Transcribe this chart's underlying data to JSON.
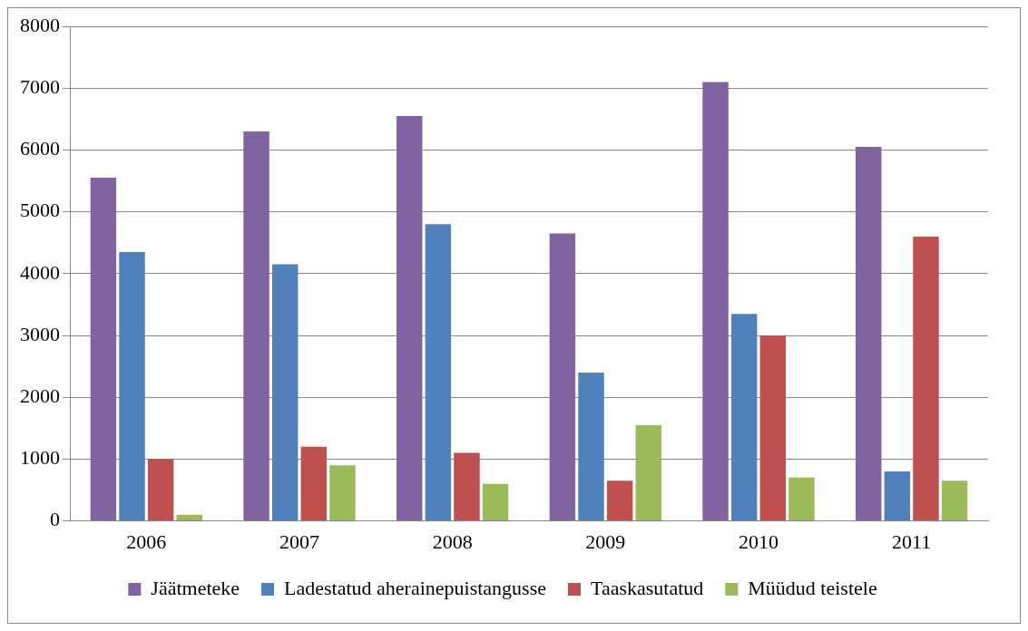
{
  "chart_data": {
    "type": "bar",
    "categories": [
      "2006",
      "2007",
      "2008",
      "2009",
      "2010",
      "2011"
    ],
    "series": [
      {
        "name": "Jäätmeteke",
        "color": "#8064a2",
        "values": [
          5550,
          6300,
          6550,
          4650,
          7100,
          6050
        ]
      },
      {
        "name": "Ladestatud aherainepuistangusse",
        "color": "#4f81bd",
        "values": [
          4350,
          4150,
          4800,
          2400,
          3350,
          800
        ]
      },
      {
        "name": "Taaskasutatud",
        "color": "#c0504d",
        "values": [
          1000,
          1200,
          1100,
          650,
          3000,
          4600
        ]
      },
      {
        "name": "Müüdud teistele",
        "color": "#9bbb59",
        "values": [
          100,
          900,
          600,
          1550,
          700,
          650
        ]
      }
    ],
    "ylim": [
      0,
      8000
    ],
    "yticks": [
      0,
      1000,
      2000,
      3000,
      4000,
      5000,
      6000,
      7000,
      8000
    ],
    "grid": "y",
    "legend": "bottom"
  }
}
